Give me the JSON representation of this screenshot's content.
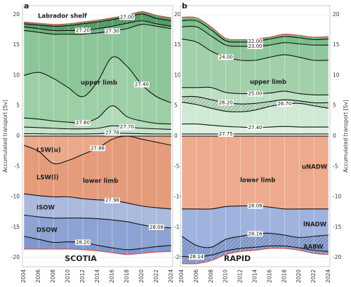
{
  "chart_data": [
    {
      "type": "area",
      "panel_label": "a",
      "title": "SCOTIA",
      "ylabel": "Accumulated transport [Sv]",
      "x": [
        2004,
        2006,
        2008,
        2010,
        2012,
        2014,
        2016,
        2018,
        2020,
        2022,
        2024
      ],
      "xlim": [
        2003.8,
        2024.2
      ],
      "xticks": [
        2004,
        2006,
        2008,
        2010,
        2012,
        2014,
        2016,
        2018,
        2020,
        2022,
        2024
      ],
      "ylim": [
        -21.5,
        21.5
      ],
      "yticks": [
        -20,
        -15,
        -10,
        -5,
        0,
        5,
        10,
        15,
        20
      ],
      "grid": true,
      "annotations": [
        "Labrador shelf",
        "upper limb",
        "LSW(u)",
        "LSW(l)",
        "lower limb",
        "ISOW",
        "DSOW"
      ],
      "series": [
        {
          "values": [
            18.8,
            18.6,
            18.4,
            18.5,
            18.8,
            19.1,
            19.5,
            19.9,
            20.5,
            19.9,
            19.5
          ],
          "line_color": "#d9534f",
          "color": "#5aa46e",
          "hatch": true
        },
        {
          "values": [
            18.5,
            18.3,
            18.1,
            18.2,
            18.5,
            18.8,
            19.2,
            19.6,
            20.1,
            19.4,
            19.0
          ],
          "level": {
            "value": 27.0,
            "label": "27.00"
          },
          "line_color": "#111",
          "color": "#5aa46e",
          "hatch": true
        },
        {
          "values": [
            18.0,
            17.7,
            17.4,
            17.4,
            17.4,
            17.7,
            18.1,
            18.6,
            19.0,
            18.5,
            18.1
          ],
          "level": {
            "value": 27.2,
            "label": "27.20"
          },
          "line_color": "#111",
          "color": "#6db27e"
        },
        {
          "values": [
            17.4,
            17.1,
            16.8,
            16.8,
            16.8,
            17.0,
            17.3,
            17.7,
            18.4,
            18.1,
            17.7
          ],
          "level": {
            "value": 27.3,
            "label": "27.30"
          },
          "line_color": "#111",
          "color": "#8cc598"
        },
        {
          "values": [
            10,
            10.5,
            9.5,
            8,
            6.5,
            9,
            13,
            11.5,
            8.5,
            6.5,
            5.5
          ],
          "level": {
            "value": 27.4,
            "label": "27.40"
          },
          "line_color": "#111",
          "color": "#9dcfa7"
        },
        {
          "values": [
            3,
            2.8,
            2.5,
            2.3,
            2.2,
            3,
            5,
            3.2,
            2.5,
            2.1,
            2
          ],
          "level": {
            "value": 27.6,
            "label": "27.60"
          },
          "line_color": "#111",
          "color": "#b3dab9"
        },
        {
          "values": [
            1.5,
            1.4,
            1.3,
            1.2,
            1.2,
            1.3,
            1.7,
            1.5,
            1.3,
            1.2,
            1.1
          ],
          "level": {
            "value": 27.7,
            "label": "27.70"
          },
          "line_color": "#111",
          "color": "#c7e4cb"
        },
        {
          "values": [
            0.4,
            0.4,
            0.35,
            0.35,
            0.35,
            0.4,
            0.5,
            0.45,
            0.4,
            0.35,
            0.35
          ],
          "level": {
            "value": 27.78,
            "label": "27.78"
          },
          "line_color": "#111",
          "color": "#d5ebd8"
        },
        {
          "values": [
            0,
            0,
            0,
            0,
            0,
            0,
            0,
            0,
            0,
            0,
            0
          ],
          "line_color": "#333",
          "color": "#eaa98a"
        },
        {
          "values": [
            -1.5,
            -2.5,
            -4.5,
            -4,
            -3,
            -2,
            -0.5,
            0,
            -0.5,
            -1,
            -1.5
          ],
          "level": {
            "value": 27.88,
            "label": "27.88"
          },
          "line_color": "#111",
          "color": "#e49c7b"
        },
        {
          "values": [
            -9.5,
            -9.8,
            -10,
            -10,
            -10.3,
            -10.5,
            -10.6,
            -11,
            -11.5,
            -11.8,
            -12
          ],
          "level": {
            "value": 27.98,
            "label": "27.98"
          },
          "line_color": "#111",
          "color": "#aab9dc"
        },
        {
          "values": [
            -13,
            -13.3,
            -13.5,
            -13.5,
            -13.5,
            -13.6,
            -13.8,
            -14.1,
            -14.6,
            -15,
            -15.1
          ],
          "level": {
            "value": 28.08,
            "label": "28.08"
          },
          "line_color": "#111",
          "color": "#8da3d3"
        },
        {
          "values": [
            -16.5,
            -17,
            -17.5,
            -17.4,
            -17.5,
            -18,
            -18.4,
            -18.7,
            -18.5,
            -18.2,
            -18
          ],
          "level": {
            "value": 28.2,
            "label": "28.20"
          },
          "line_color": "#111",
          "color": "#7f97cc"
        },
        {
          "values": [
            -18.6,
            -18.6,
            -18.6,
            -18.6,
            -18.7,
            -18.9,
            -19.2,
            -19.5,
            -19.3,
            -19.1,
            -19
          ],
          "line_color": "#d9534f"
        }
      ]
    },
    {
      "type": "area",
      "panel_label": "b",
      "title": "RAPID",
      "ylabel": "Accumulated transport [Sv]",
      "x": [
        2004,
        2006,
        2008,
        2010,
        2012,
        2014,
        2016,
        2018,
        2020,
        2022,
        2024
      ],
      "xlim": [
        2003.8,
        2024.2
      ],
      "xticks": [
        2004,
        2006,
        2008,
        2010,
        2012,
        2014,
        2016,
        2018,
        2020,
        2022,
        2024
      ],
      "ylim": [
        -21.5,
        21.5
      ],
      "yticks": [
        -20,
        -15,
        -10,
        -5,
        0,
        5,
        10,
        15,
        20
      ],
      "grid": true,
      "annotations": [
        "upper limb",
        "uNADW",
        "lower limb",
        "lNADW",
        "AABW"
      ],
      "series": [
        {
          "values": [
            19.6,
            19.5,
            18,
            16.1,
            15.9,
            16,
            16.3,
            16.8,
            16.6,
            16.3,
            16.4
          ],
          "line_color": "#d9534f",
          "color": "#6cb47e"
        },
        {
          "values": [
            19,
            19,
            17.5,
            15.7,
            15.5,
            15.6,
            16,
            16.4,
            16.2,
            15.9,
            16
          ],
          "level": {
            "value": 22.0,
            "label": "22.00"
          },
          "line_color": "#111",
          "color": "#7dbd8c"
        },
        {
          "values": [
            18,
            18,
            16.5,
            15,
            14.8,
            14.8,
            15,
            15.4,
            15.2,
            15,
            15
          ],
          "level": {
            "value": 23.0,
            "label": "23.00"
          },
          "line_color": "#111",
          "color": "#90c79c"
        },
        {
          "values": [
            16,
            15.5,
            14,
            13,
            12.5,
            12.5,
            13,
            13.4,
            13,
            12.5,
            12.5
          ],
          "level": {
            "value": 24.0,
            "label": "24.00"
          },
          "line_color": "#111",
          "color": "#a2d0ab"
        },
        {
          "values": [
            8,
            8,
            8,
            7.2,
            7,
            7,
            7.1,
            7.4,
            7,
            6.8,
            6.8
          ],
          "level": {
            "value": 25.0,
            "label": "25.00"
          },
          "line_color": "#111",
          "color": "#bde0c3"
        },
        {
          "values": [
            6.5,
            6.5,
            6,
            5.5,
            5.3,
            5.4,
            5.7,
            6,
            5.8,
            5.5,
            5.5
          ],
          "level": {
            "value": 26.2,
            "label": "26.20"
          },
          "line_color": "#111",
          "color": "#b9dcbf",
          "hatch": true
        },
        {
          "values": [
            5.6,
            5.2,
            4.6,
            4.1,
            4,
            4.3,
            4.9,
            5.3,
            5.4,
            5,
            4.6
          ],
          "level": {
            "value": 26.7,
            "label": "26.70"
          },
          "line_color": "#111",
          "color": "#cfe9d4"
        },
        {
          "values": [
            2,
            2,
            1.8,
            1.6,
            1.5,
            1.4,
            1.5,
            1.6,
            1.5,
            1.5,
            1.5
          ],
          "level": {
            "value": 27.4,
            "label": "27.40"
          },
          "line_color": "#111",
          "color": "#dff0e2"
        },
        {
          "values": [
            0.35,
            0.35,
            0.35,
            0.35,
            0.35,
            0.35,
            0.35,
            0.35,
            0.35,
            0.35,
            0.35
          ],
          "level": {
            "value": 27.75,
            "label": "27.75"
          },
          "line_color": "#111",
          "color": "#eef7ef"
        },
        {
          "values": [
            0,
            0,
            0,
            0,
            0,
            0,
            0,
            0,
            0,
            0,
            0
          ],
          "line_color": "#333",
          "color": "#eeaa8c"
        },
        {
          "values": [
            -12,
            -12,
            -12,
            -11.6,
            -11.5,
            -11.5,
            -11.7,
            -12,
            -12,
            -12,
            -12
          ],
          "level": {
            "value": 28.08,
            "label": "28.08"
          },
          "line_color": "#111",
          "color": "#9fb3de"
        },
        {
          "values": [
            -16.5,
            -18,
            -18.3,
            -17,
            -16.5,
            -16.1,
            -16,
            -16.3,
            -16.7,
            -16.5,
            -16.3
          ],
          "level": {
            "value": 28.16,
            "label": "28.16"
          },
          "line_color": "#111",
          "color": "#8ea4d5",
          "hatch": true
        },
        {
          "values": [
            -19.8,
            -19.9,
            -19.6,
            -18.9,
            -18.5,
            -18.3,
            -18.1,
            -18.1,
            -18.4,
            -18.8,
            -19
          ],
          "level": {
            "value": 28.14,
            "label": "28.14"
          },
          "line_color": "#111",
          "color": "#8ea4d5",
          "hatch": true
        },
        {
          "values": [
            -21,
            -21,
            -20.5,
            -19.5,
            -19,
            -18.8,
            -18.5,
            -18.5,
            -18.8,
            -19.3,
            -19.5
          ],
          "line_color": "#d9534f"
        }
      ]
    }
  ]
}
